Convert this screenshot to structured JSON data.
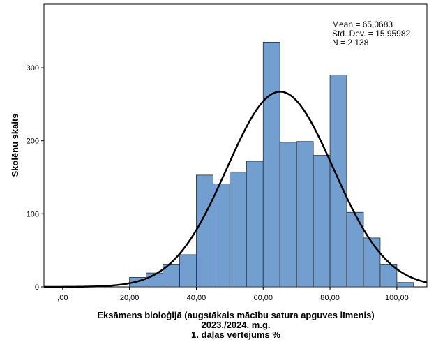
{
  "chart_data": {
    "type": "bar",
    "subtype": "histogram",
    "bin_width": 5,
    "bins": [
      {
        "start": 20,
        "end": 25,
        "value": 13
      },
      {
        "start": 25,
        "end": 30,
        "value": 19
      },
      {
        "start": 30,
        "end": 35,
        "value": 31
      },
      {
        "start": 35,
        "end": 40,
        "value": 44
      },
      {
        "start": 40,
        "end": 45,
        "value": 153
      },
      {
        "start": 45,
        "end": 50,
        "value": 141
      },
      {
        "start": 50,
        "end": 55,
        "value": 157
      },
      {
        "start": 55,
        "end": 60,
        "value": 172
      },
      {
        "start": 60,
        "end": 65,
        "value": 335
      },
      {
        "start": 65,
        "end": 70,
        "value": 198
      },
      {
        "start": 70,
        "end": 75,
        "value": 199
      },
      {
        "start": 75,
        "end": 80,
        "value": 180
      },
      {
        "start": 80,
        "end": 85,
        "value": 290
      },
      {
        "start": 85,
        "end": 90,
        "value": 102
      },
      {
        "start": 90,
        "end": 95,
        "value": 67
      },
      {
        "start": 95,
        "end": 100,
        "value": 31
      },
      {
        "start": 100,
        "end": 105,
        "value": 6
      }
    ],
    "normal_curve": {
      "mean": 65.0683,
      "std_dev": 15.95982,
      "n": 2138
    },
    "xlim": [
      -5.6,
      109
    ],
    "ylim": [
      0,
      387
    ],
    "x_ticks": [
      0,
      20,
      40,
      60,
      80,
      100
    ],
    "x_tick_labels": [
      ",00",
      "20,00",
      "40,00",
      "60,00",
      "80,00",
      "100,00"
    ],
    "y_ticks": [
      0,
      100,
      200,
      300
    ],
    "y_tick_labels": [
      "0",
      "100",
      "200",
      "300"
    ],
    "ylabel": "Skolēnu skaits",
    "xlabel_lines": [
      "Eksāmens bioloģijā  (augstākais mācību satura apguves līmenis)",
      "2023./2024. m.g.",
      "1. daļas vērtējums %"
    ],
    "stats_lines": [
      "Mean = 65,0683",
      "Std. Dev. = 15,95982",
      "N = 2 138"
    ],
    "legend_placement": "top-right",
    "grid": false
  },
  "colors": {
    "bar_fill": "#729fcf",
    "bar_stroke": "#2b2b2b",
    "curve": "#000000",
    "axis": "#000000",
    "background": "#ffffff"
  }
}
